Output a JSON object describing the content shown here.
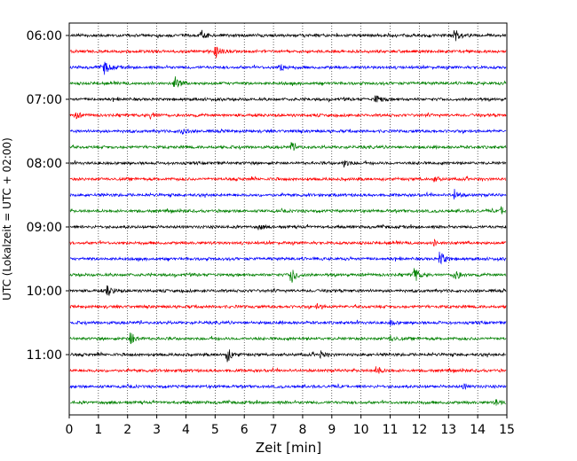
{
  "chart_data": {
    "type": "line",
    "title": "",
    "xlabel": "Zeit  [min]",
    "ylabel": "UTC (Lokalzeit = UTC + 02:00)",
    "xlim": [
      0,
      15
    ],
    "x_ticks": [
      0,
      1,
      2,
      3,
      4,
      5,
      6,
      7,
      8,
      9,
      10,
      11,
      12,
      13,
      14,
      15
    ],
    "y_tick_labels": [
      "06:00",
      "07:00",
      "08:00",
      "09:00",
      "10:00",
      "11:00"
    ],
    "y_tick_rows": [
      0,
      4,
      8,
      12,
      16,
      20
    ],
    "grid_x": true,
    "row_colors": [
      "#000000",
      "#ff0000",
      "#0000ff",
      "#008000"
    ],
    "rows": [
      {
        "start": "06:00",
        "events": [
          {
            "t": 4.5,
            "a": 5
          },
          {
            "t": 13.2,
            "a": 8
          }
        ]
      },
      {
        "start": "06:15",
        "events": [
          {
            "t": 5.0,
            "a": 8
          }
        ]
      },
      {
        "start": "06:30",
        "events": [
          {
            "t": 1.2,
            "a": 8
          },
          {
            "t": 7.2,
            "a": 6
          }
        ]
      },
      {
        "start": "06:45",
        "events": [
          {
            "t": 3.6,
            "a": 9
          }
        ]
      },
      {
        "start": "07:00",
        "events": [
          {
            "t": 10.5,
            "a": 6
          }
        ]
      },
      {
        "start": "07:15",
        "events": [
          {
            "t": 0.2,
            "a": 4
          },
          {
            "t": 2.8,
            "a": 5
          }
        ]
      },
      {
        "start": "07:30",
        "events": [
          {
            "t": 3.8,
            "a": 4
          }
        ]
      },
      {
        "start": "07:45",
        "events": [
          {
            "t": 7.6,
            "a": 5
          }
        ]
      },
      {
        "start": "08:00",
        "events": [
          {
            "t": 9.4,
            "a": 4
          }
        ]
      },
      {
        "start": "08:15",
        "events": [
          {
            "t": 12.5,
            "a": 3
          }
        ]
      },
      {
        "start": "08:30",
        "events": [
          {
            "t": 13.2,
            "a": 6
          }
        ]
      },
      {
        "start": "08:45",
        "events": [
          {
            "t": 14.8,
            "a": 4
          }
        ]
      },
      {
        "start": "09:00",
        "events": [
          {
            "t": 6.5,
            "a": 3
          }
        ]
      },
      {
        "start": "09:15",
        "events": [
          {
            "t": 12.5,
            "a": 3
          }
        ]
      },
      {
        "start": "09:30",
        "events": [
          {
            "t": 12.7,
            "a": 10
          }
        ]
      },
      {
        "start": "09:45",
        "events": [
          {
            "t": 7.6,
            "a": 11
          },
          {
            "t": 11.8,
            "a": 10
          },
          {
            "t": 13.2,
            "a": 7
          }
        ]
      },
      {
        "start": "10:00",
        "events": [
          {
            "t": 1.3,
            "a": 8
          }
        ]
      },
      {
        "start": "10:15",
        "events": [
          {
            "t": 8.5,
            "a": 3
          }
        ]
      },
      {
        "start": "10:30",
        "events": [
          {
            "t": 11.0,
            "a": 3
          }
        ]
      },
      {
        "start": "10:45",
        "events": [
          {
            "t": 2.1,
            "a": 9
          },
          {
            "t": 11.0,
            "a": 4
          }
        ]
      },
      {
        "start": "11:00",
        "events": [
          {
            "t": 5.4,
            "a": 9
          },
          {
            "t": 8.6,
            "a": 4
          }
        ]
      },
      {
        "start": "11:15",
        "events": [
          {
            "t": 10.5,
            "a": 6
          }
        ]
      },
      {
        "start": "11:30",
        "events": [
          {
            "t": 13.5,
            "a": 3
          }
        ]
      },
      {
        "start": "11:45",
        "events": [
          {
            "t": 14.6,
            "a": 4
          }
        ]
      }
    ]
  }
}
